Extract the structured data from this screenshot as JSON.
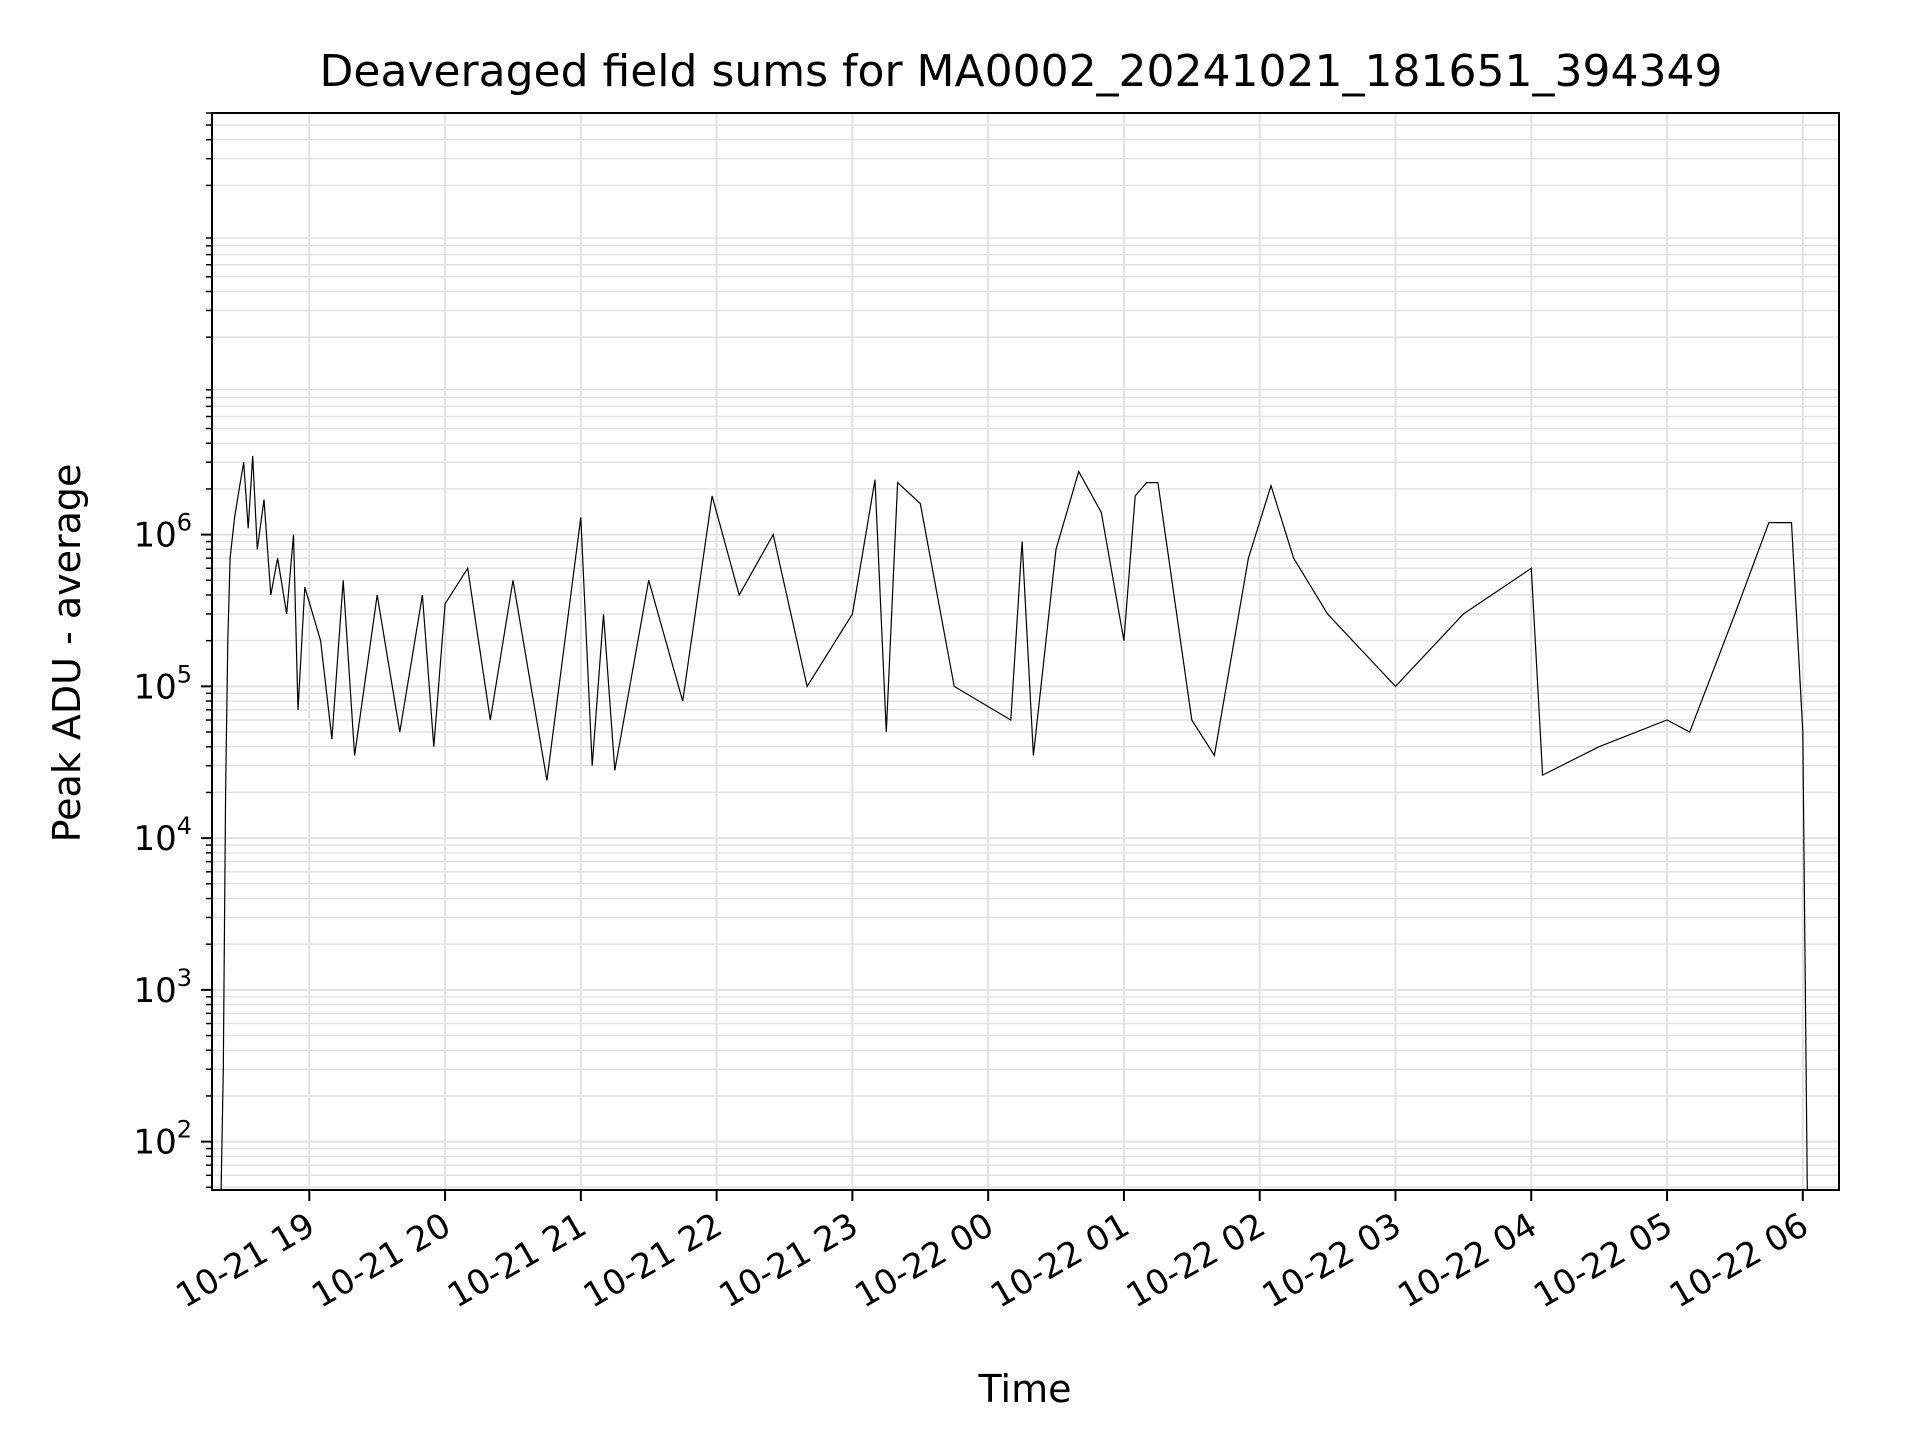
{
  "chart_data": {
    "type": "line",
    "title": "Deaveraged field sums for MA0002_20241021_181651_394349",
    "xlabel": "Time",
    "ylabel": "Peak ADU - average",
    "yscale": "log",
    "ylim": [
      48,
      600000000
    ],
    "xlim": [
      "2024-10-21 18:17",
      "2024-10-22 06:16"
    ],
    "grid": true,
    "line_color": "#000000",
    "grid_color": "#e2e2e2",
    "x_ticks": [
      {
        "value": "2024-10-21 19:00",
        "label": "10-21 19"
      },
      {
        "value": "2024-10-21 20:00",
        "label": "10-21 20"
      },
      {
        "value": "2024-10-21 21:00",
        "label": "10-21 21"
      },
      {
        "value": "2024-10-21 22:00",
        "label": "10-21 22"
      },
      {
        "value": "2024-10-21 23:00",
        "label": "10-21 23"
      },
      {
        "value": "2024-10-22 00:00",
        "label": "10-22 00"
      },
      {
        "value": "2024-10-22 01:00",
        "label": "10-22 01"
      },
      {
        "value": "2024-10-22 02:00",
        "label": "10-22 02"
      },
      {
        "value": "2024-10-22 03:00",
        "label": "10-22 03"
      },
      {
        "value": "2024-10-22 04:00",
        "label": "10-22 04"
      },
      {
        "value": "2024-10-22 05:00",
        "label": "10-22 05"
      },
      {
        "value": "2024-10-22 06:00",
        "label": "10-22 06"
      }
    ],
    "y_ticks": [
      {
        "value": 100,
        "base": "10",
        "exp": "2"
      },
      {
        "value": 1000,
        "base": "10",
        "exp": "3"
      },
      {
        "value": 10000,
        "base": "10",
        "exp": "4"
      },
      {
        "value": 100000,
        "base": "10",
        "exp": "5"
      },
      {
        "value": 1000000,
        "base": "10",
        "exp": "6"
      }
    ],
    "series": [
      {
        "points": [
          [
            "2024-10-21 18:21",
            48
          ],
          [
            "2024-10-21 18:22",
            300
          ],
          [
            "2024-10-21 18:23",
            20000
          ],
          [
            "2024-10-21 18:24",
            200000
          ],
          [
            "2024-10-21 18:25",
            700000
          ],
          [
            "2024-10-21 18:27",
            1300000
          ],
          [
            "2024-10-21 18:29",
            2000000
          ],
          [
            "2024-10-21 18:31",
            3000000
          ],
          [
            "2024-10-21 18:33",
            1100000
          ],
          [
            "2024-10-21 18:35",
            3300000
          ],
          [
            "2024-10-21 18:37",
            800000
          ],
          [
            "2024-10-21 18:40",
            1700000
          ],
          [
            "2024-10-21 18:43",
            400000
          ],
          [
            "2024-10-21 18:46",
            700000
          ],
          [
            "2024-10-21 18:50",
            300000
          ],
          [
            "2024-10-21 18:53",
            1000000
          ],
          [
            "2024-10-21 18:55",
            70000
          ],
          [
            "2024-10-21 18:58",
            450000
          ],
          [
            "2024-10-21 19:05",
            200000
          ],
          [
            "2024-10-21 19:10",
            45000
          ],
          [
            "2024-10-21 19:15",
            500000
          ],
          [
            "2024-10-21 19:20",
            35000
          ],
          [
            "2024-10-21 19:30",
            400000
          ],
          [
            "2024-10-21 19:40",
            50000
          ],
          [
            "2024-10-21 19:50",
            400000
          ],
          [
            "2024-10-21 19:55",
            40000
          ],
          [
            "2024-10-21 20:00",
            350000
          ],
          [
            "2024-10-21 20:10",
            600000
          ],
          [
            "2024-10-21 20:20",
            60000
          ],
          [
            "2024-10-21 20:30",
            500000
          ],
          [
            "2024-10-21 20:45",
            24000
          ],
          [
            "2024-10-21 21:00",
            1300000
          ],
          [
            "2024-10-21 21:05",
            30000
          ],
          [
            "2024-10-21 21:10",
            300000
          ],
          [
            "2024-10-21 21:15",
            28000
          ],
          [
            "2024-10-21 21:30",
            500000
          ],
          [
            "2024-10-21 21:45",
            80000
          ],
          [
            "2024-10-21 21:58",
            1800000
          ],
          [
            "2024-10-21 22:10",
            400000
          ],
          [
            "2024-10-21 22:25",
            1000000
          ],
          [
            "2024-10-21 22:40",
            100000
          ],
          [
            "2024-10-21 23:00",
            300000
          ],
          [
            "2024-10-21 23:10",
            2300000
          ],
          [
            "2024-10-21 23:15",
            50000
          ],
          [
            "2024-10-21 23:20",
            2200000
          ],
          [
            "2024-10-21 23:30",
            1600000
          ],
          [
            "2024-10-21 23:45",
            100000
          ],
          [
            "2024-10-22 00:10",
            60000
          ],
          [
            "2024-10-22 00:15",
            900000
          ],
          [
            "2024-10-22 00:20",
            35000
          ],
          [
            "2024-10-22 00:30",
            800000
          ],
          [
            "2024-10-22 00:40",
            2600000
          ],
          [
            "2024-10-22 00:50",
            1400000
          ],
          [
            "2024-10-22 01:00",
            200000
          ],
          [
            "2024-10-22 01:05",
            1800000
          ],
          [
            "2024-10-22 01:10",
            2200000
          ],
          [
            "2024-10-22 01:15",
            2200000
          ],
          [
            "2024-10-22 01:30",
            60000
          ],
          [
            "2024-10-22 01:40",
            35000
          ],
          [
            "2024-10-22 01:55",
            700000
          ],
          [
            "2024-10-22 02:05",
            2100000
          ],
          [
            "2024-10-22 02:15",
            700000
          ],
          [
            "2024-10-22 02:30",
            300000
          ],
          [
            "2024-10-22 03:00",
            100000
          ],
          [
            "2024-10-22 03:30",
            300000
          ],
          [
            "2024-10-22 04:00",
            600000
          ],
          [
            "2024-10-22 04:05",
            26000
          ],
          [
            "2024-10-22 04:30",
            40000
          ],
          [
            "2024-10-22 05:00",
            60000
          ],
          [
            "2024-10-22 05:10",
            50000
          ],
          [
            "2024-10-22 05:30",
            300000
          ],
          [
            "2024-10-22 05:45",
            1200000
          ],
          [
            "2024-10-22 05:55",
            1200000
          ],
          [
            "2024-10-22 06:00",
            50000
          ],
          [
            "2024-10-22 06:02",
            48
          ]
        ]
      }
    ]
  }
}
